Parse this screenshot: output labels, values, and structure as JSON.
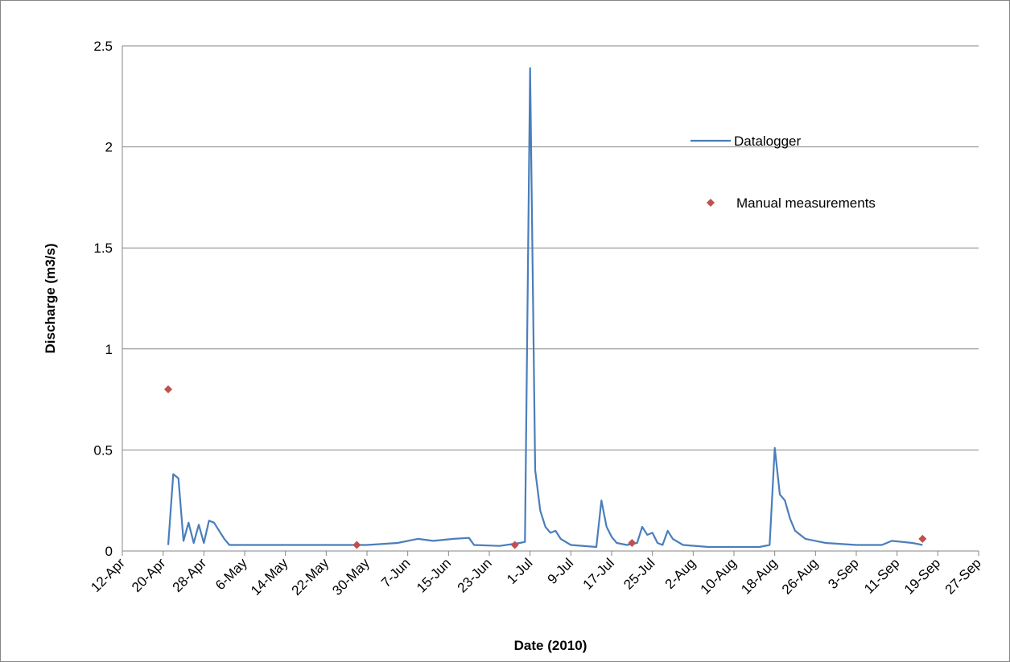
{
  "chart_data": {
    "type": "line",
    "xlabel": "Date (2010)",
    "ylabel": "Discharge (m3/s)",
    "xlim": [
      "2010-04-12",
      "2010-09-27"
    ],
    "xticks": [
      {
        "value": "2010-04-12",
        "label": "12-Apr"
      },
      {
        "value": "2010-04-20",
        "label": "20-Apr"
      },
      {
        "value": "2010-04-28",
        "label": "28-Apr"
      },
      {
        "value": "2010-05-06",
        "label": "6-May"
      },
      {
        "value": "2010-05-14",
        "label": "14-May"
      },
      {
        "value": "2010-05-22",
        "label": "22-May"
      },
      {
        "value": "2010-05-30",
        "label": "30-May"
      },
      {
        "value": "2010-06-07",
        "label": "7-Jun"
      },
      {
        "value": "2010-06-15",
        "label": "15-Jun"
      },
      {
        "value": "2010-06-23",
        "label": "23-Jun"
      },
      {
        "value": "2010-07-01",
        "label": "1-Jul"
      },
      {
        "value": "2010-07-09",
        "label": "9-Jul"
      },
      {
        "value": "2010-07-17",
        "label": "17-Jul"
      },
      {
        "value": "2010-07-25",
        "label": "25-Jul"
      },
      {
        "value": "2010-08-02",
        "label": "2-Aug"
      },
      {
        "value": "2010-08-10",
        "label": "10-Aug"
      },
      {
        "value": "2010-08-18",
        "label": "18-Aug"
      },
      {
        "value": "2010-08-26",
        "label": "26-Aug"
      },
      {
        "value": "2010-09-03",
        "label": "3-Sep"
      },
      {
        "value": "2010-09-11",
        "label": "11-Sep"
      },
      {
        "value": "2010-09-19",
        "label": "19-Sep"
      },
      {
        "value": "2010-09-27",
        "label": "27-Sep"
      }
    ],
    "ylim": [
      0,
      2.5
    ],
    "yticks": [
      0,
      0.5,
      1,
      1.5,
      2,
      2.5
    ],
    "grid": true,
    "series": [
      {
        "name": "Datalogger",
        "color": "#4a7ebb",
        "mode": "line",
        "x": [
          "2010-04-21",
          "2010-04-22",
          "2010-04-23",
          "2010-04-24",
          "2010-04-25",
          "2010-04-26",
          "2010-04-27",
          "2010-04-28",
          "2010-04-29",
          "2010-04-30",
          "2010-05-01",
          "2010-05-02",
          "2010-05-03",
          "2010-05-10",
          "2010-05-20",
          "2010-05-30",
          "2010-06-05",
          "2010-06-09",
          "2010-06-12",
          "2010-06-16",
          "2010-06-19",
          "2010-06-20",
          "2010-06-25",
          "2010-06-29",
          "2010-06-30",
          "2010-07-01",
          "2010-07-02",
          "2010-07-03",
          "2010-07-04",
          "2010-07-05",
          "2010-07-06",
          "2010-07-07",
          "2010-07-09",
          "2010-07-14",
          "2010-07-15",
          "2010-07-16",
          "2010-07-17",
          "2010-07-18",
          "2010-07-20",
          "2010-07-22",
          "2010-07-23",
          "2010-07-24",
          "2010-07-25",
          "2010-07-26",
          "2010-07-27",
          "2010-07-28",
          "2010-07-29",
          "2010-07-31",
          "2010-08-05",
          "2010-08-15",
          "2010-08-17",
          "2010-08-18",
          "2010-08-19",
          "2010-08-20",
          "2010-08-21",
          "2010-08-22",
          "2010-08-24",
          "2010-08-28",
          "2010-09-03",
          "2010-09-08",
          "2010-09-10",
          "2010-09-14",
          "2010-09-16"
        ],
        "values": [
          0.03,
          0.38,
          0.36,
          0.05,
          0.14,
          0.04,
          0.13,
          0.04,
          0.15,
          0.14,
          0.1,
          0.06,
          0.03,
          0.03,
          0.03,
          0.03,
          0.04,
          0.06,
          0.05,
          0.06,
          0.065,
          0.03,
          0.025,
          0.04,
          0.045,
          2.39,
          0.4,
          0.2,
          0.12,
          0.09,
          0.1,
          0.06,
          0.03,
          0.02,
          0.25,
          0.12,
          0.07,
          0.04,
          0.03,
          0.04,
          0.12,
          0.08,
          0.09,
          0.04,
          0.03,
          0.1,
          0.06,
          0.03,
          0.02,
          0.02,
          0.03,
          0.51,
          0.28,
          0.25,
          0.16,
          0.1,
          0.06,
          0.04,
          0.03,
          0.03,
          0.05,
          0.04,
          0.03
        ]
      },
      {
        "name": "Manual measurements",
        "color": "#c0504d",
        "mode": "markers",
        "x": [
          "2010-04-21",
          "2010-05-28",
          "2010-06-28",
          "2010-07-21",
          "2010-09-16"
        ],
        "values": [
          0.8,
          0.03,
          0.03,
          0.04,
          0.06
        ]
      }
    ]
  }
}
